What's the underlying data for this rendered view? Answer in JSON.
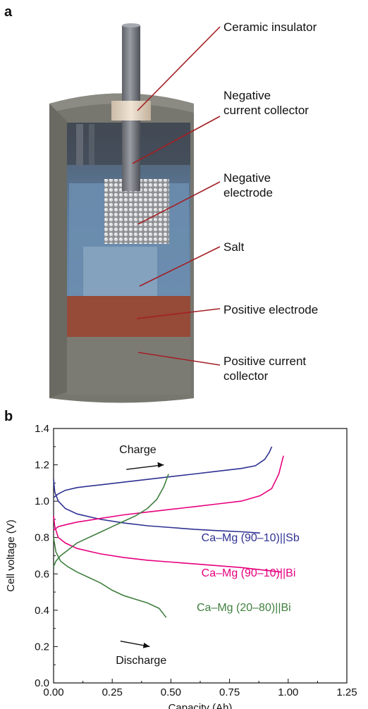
{
  "panel_a": {
    "label": "a",
    "callouts": [
      {
        "lines": [
          "Ceramic insulator"
        ]
      },
      {
        "lines": [
          "Negative",
          "current collector"
        ]
      },
      {
        "lines": [
          "Negative",
          "electrode"
        ]
      },
      {
        "lines": [
          "Salt"
        ]
      },
      {
        "lines": [
          "Positive electrode"
        ]
      },
      {
        "lines": [
          "Positive current",
          "collector"
        ]
      }
    ],
    "colors": {
      "leader": "#a31f24",
      "housing": "#7b7b73",
      "salt": "#6f8fb0",
      "positive_electrode": "#9b4a3a",
      "rod": "#7d7f86",
      "insulator": "#e8d9c6"
    }
  },
  "panel_b": {
    "label": "b",
    "annotations": {
      "charge": "Charge",
      "discharge": "Discharge"
    }
  },
  "chart_data": {
    "type": "line",
    "title": "",
    "xlabel": "Capacity (Ah)",
    "ylabel": "Cell voltage (V)",
    "xlim": [
      0,
      1.25
    ],
    "ylim": [
      0,
      1.4
    ],
    "xticks": [
      "0.00",
      "0.25",
      "0.50",
      "0.75",
      "1.00",
      "1.25"
    ],
    "yticks": [
      "0.0",
      "0.2",
      "0.4",
      "0.6",
      "0.8",
      "1.0",
      "1.2",
      "1.4"
    ],
    "grid": false,
    "series": [
      {
        "name": "Ca–Mg (90–10)||Sb",
        "color": "#2e3192",
        "charge": {
          "x": [
            0.0,
            0.02,
            0.05,
            0.1,
            0.2,
            0.3,
            0.4,
            0.5,
            0.6,
            0.7,
            0.8,
            0.86,
            0.9,
            0.92,
            0.93
          ],
          "y": [
            1.02,
            1.04,
            1.06,
            1.075,
            1.09,
            1.105,
            1.12,
            1.135,
            1.15,
            1.165,
            1.18,
            1.195,
            1.23,
            1.27,
            1.3
          ]
        },
        "discharge": {
          "x": [
            0.0,
            0.005,
            0.02,
            0.05,
            0.1,
            0.2,
            0.3,
            0.4,
            0.5,
            0.6,
            0.7,
            0.8,
            0.88
          ],
          "y": [
            1.12,
            1.05,
            1.0,
            0.96,
            0.93,
            0.9,
            0.88,
            0.865,
            0.855,
            0.845,
            0.838,
            0.832,
            0.825
          ]
        }
      },
      {
        "name": "Ca–Mg (90–10)||Bi",
        "color": "#e6007e",
        "charge": {
          "x": [
            0.0,
            0.02,
            0.05,
            0.1,
            0.2,
            0.3,
            0.4,
            0.5,
            0.6,
            0.7,
            0.8,
            0.88,
            0.93,
            0.96,
            0.98
          ],
          "y": [
            0.84,
            0.86,
            0.87,
            0.885,
            0.905,
            0.925,
            0.94,
            0.955,
            0.97,
            0.985,
            1.0,
            1.03,
            1.07,
            1.15,
            1.25
          ]
        },
        "discharge": {
          "x": [
            0.0,
            0.005,
            0.02,
            0.05,
            0.1,
            0.2,
            0.3,
            0.4,
            0.5,
            0.6,
            0.7,
            0.8,
            0.9,
            0.97
          ],
          "y": [
            0.92,
            0.86,
            0.8,
            0.77,
            0.74,
            0.71,
            0.69,
            0.675,
            0.665,
            0.655,
            0.645,
            0.635,
            0.62,
            0.61
          ]
        }
      },
      {
        "name": "Ca–Mg (20–80)||Bi",
        "color": "#3f7f3f",
        "charge": {
          "x": [
            0.0,
            0.01,
            0.03,
            0.06,
            0.1,
            0.15,
            0.2,
            0.25,
            0.3,
            0.35,
            0.4,
            0.44,
            0.47,
            0.49
          ],
          "y": [
            0.64,
            0.67,
            0.7,
            0.73,
            0.77,
            0.8,
            0.83,
            0.86,
            0.89,
            0.92,
            0.96,
            1.01,
            1.08,
            1.15
          ]
        },
        "discharge": {
          "x": [
            0.0,
            0.01,
            0.03,
            0.06,
            0.1,
            0.15,
            0.2,
            0.25,
            0.3,
            0.35,
            0.4,
            0.45,
            0.48
          ],
          "y": [
            0.8,
            0.72,
            0.67,
            0.64,
            0.61,
            0.58,
            0.55,
            0.51,
            0.48,
            0.46,
            0.44,
            0.41,
            0.36
          ]
        }
      }
    ]
  }
}
